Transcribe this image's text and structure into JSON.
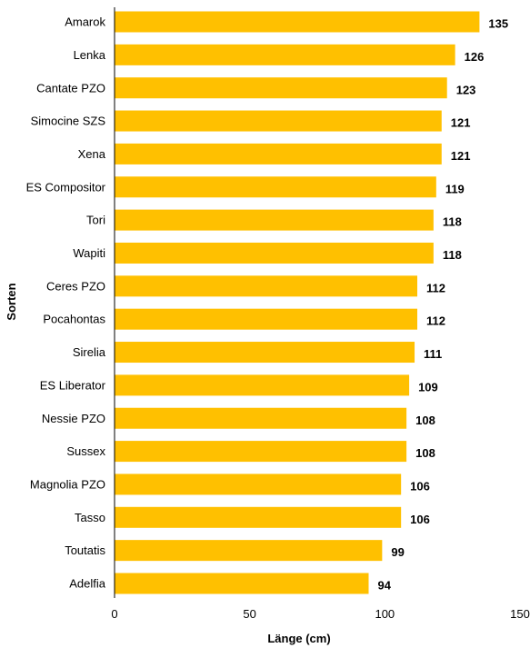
{
  "chart_data": {
    "type": "bar",
    "orientation": "horizontal",
    "categories": [
      "Amarok",
      "Lenka",
      "Cantate PZO",
      "Simocine SZS",
      "Xena",
      "ES Compositor",
      "Tori",
      "Wapiti",
      "Ceres PZO",
      "Pocahontas",
      "Sirelia",
      "ES Liberator",
      "Nessie PZO",
      "Sussex",
      "Magnolia PZO",
      "Tasso",
      "Toutatis",
      "Adelfia"
    ],
    "values": [
      135,
      126,
      123,
      121,
      121,
      119,
      118,
      118,
      112,
      112,
      111,
      109,
      108,
      108,
      106,
      106,
      99,
      94
    ],
    "title": "",
    "xlabel": "Länge (cm)",
    "ylabel": "Sorten",
    "xlim": [
      0,
      150
    ],
    "xticks": [
      0,
      50,
      100,
      150
    ],
    "bar_color": "#FFC000",
    "grid": false,
    "legend": "none"
  }
}
